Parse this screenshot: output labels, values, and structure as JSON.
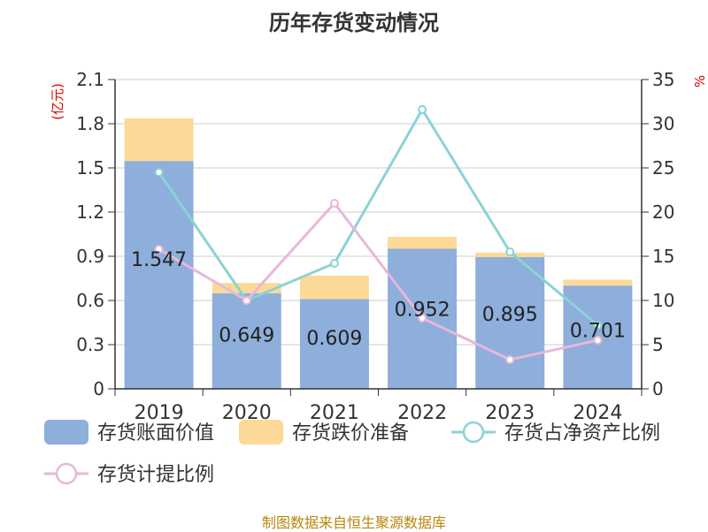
{
  "title": "历年存货变动情况",
  "footer": "制图数据来自恒生聚源数据库",
  "chart_data": {
    "type": "bar",
    "stacked": true,
    "categories": [
      "2019",
      "2020",
      "2021",
      "2022",
      "2023",
      "2024"
    ],
    "y_left_label": "(亿元)",
    "y_left_lim": [
      0,
      2.1
    ],
    "y_left_ticks": [
      "0",
      "0.3",
      "0.6",
      "0.9",
      "1.2",
      "1.5",
      "1.8",
      "2.1"
    ],
    "y_right_label": "%",
    "y_right_lim": [
      0,
      35
    ],
    "y_right_ticks": [
      "0",
      "5",
      "10",
      "15",
      "20",
      "25",
      "30",
      "35"
    ],
    "grid": true,
    "legend_position": "bottom",
    "bar_series": [
      {
        "name": "存货账面价值",
        "color": "#8eaedb",
        "values": [
          1.547,
          0.649,
          0.609,
          0.952,
          0.895,
          0.701
        ],
        "labels": [
          "1.547",
          "0.649",
          "0.609",
          "0.952",
          "0.895",
          "0.701"
        ]
      },
      {
        "name": "存货跌价准备",
        "color": "#fdd997",
        "values": [
          0.29,
          0.07,
          0.16,
          0.08,
          0.03,
          0.04
        ]
      }
    ],
    "line_series": [
      {
        "name": "存货占净资产比例",
        "color": "#8ad3d6",
        "axis": "right",
        "values": [
          24.5,
          10.0,
          14.2,
          31.6,
          15.5,
          7.2
        ]
      },
      {
        "name": "存货计提比例",
        "color": "#e6b8da",
        "axis": "right",
        "values": [
          15.8,
          10.0,
          21.0,
          8.0,
          3.3,
          5.5
        ]
      }
    ]
  }
}
